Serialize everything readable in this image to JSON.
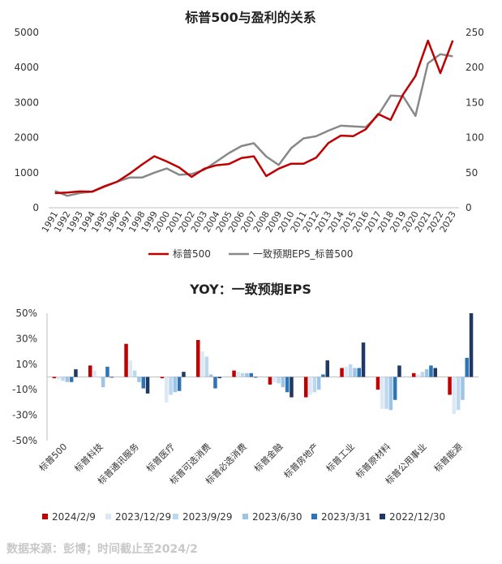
{
  "source_note": "数据来源：彭博；时间截止至2024/2",
  "chart_data": [
    {
      "type": "line",
      "title": "标普500与盈利的关系",
      "x": [
        "1991",
        "1992",
        "1993",
        "1994",
        "1995",
        "1996",
        "1997",
        "1998",
        "1999",
        "2000",
        "2001",
        "2002",
        "2003",
        "2004",
        "2005",
        "2006",
        "2007",
        "2008",
        "2009",
        "2010",
        "2011",
        "2012",
        "2013",
        "2014",
        "2015",
        "2016",
        "2017",
        "2018",
        "2019",
        "2020",
        "2021",
        "2022",
        "2023"
      ],
      "ylim_left": [
        0,
        5000
      ],
      "ylim_right": [
        0,
        250
      ],
      "yticks_left": [
        "0",
        "1000",
        "2000",
        "3000",
        "4000",
        "5000"
      ],
      "yticks_right": [
        "0",
        "50",
        "100",
        "150",
        "200",
        "250"
      ],
      "legend_position": "bottom",
      "series": [
        {
          "name": "标普500",
          "axis": "left",
          "color": "#c00000",
          "values": [
            417,
            436,
            466,
            459,
            616,
            741,
            970,
            1229,
            1469,
            1320,
            1148,
            880,
            1112,
            1212,
            1248,
            1418,
            1468,
            903,
            1115,
            1258,
            1258,
            1426,
            1848,
            2059,
            2044,
            2239,
            2674,
            2507,
            3231,
            3756,
            4766,
            3840,
            4770
          ]
        },
        {
          "name": "一致预期EPS_标普500",
          "axis": "right",
          "color": "#888888",
          "values": [
            24,
            17,
            21,
            23,
            30,
            37,
            43,
            43,
            50,
            56,
            47,
            48,
            54,
            66,
            78,
            88,
            92,
            73,
            61,
            85,
            99,
            102,
            110,
            117,
            116,
            115,
            132,
            160,
            159,
            131,
            206,
            219,
            216
          ]
        }
      ]
    },
    {
      "type": "bar",
      "title": "YOY：一致预期EPS",
      "categories": [
        "标普500",
        "标普科技",
        "标普通讯服务",
        "标普医疗",
        "标普可选消费",
        "标普必选消费",
        "标普金融",
        "标普房地产",
        "标普工业",
        "标普原材料",
        "标普公用事业",
        "标普能源"
      ],
      "ylim": [
        -50,
        50
      ],
      "yticks": [
        "50%",
        "30%",
        "10%",
        "-10%",
        "-30%",
        "-50%"
      ],
      "legend_position": "bottom",
      "series": [
        {
          "name": "2024/2/9",
          "color": "#c00000",
          "values": [
            -1,
            9,
            26,
            -1,
            29,
            5,
            -6,
            -16,
            7,
            -10,
            3,
            -14
          ]
        },
        {
          "name": "2023/12/29",
          "color": "#dbe9f7",
          "values": [
            -2,
            5,
            13,
            -20,
            20,
            4,
            -4,
            -14,
            8,
            -25,
            2,
            -29
          ]
        },
        {
          "name": "2023/9/29",
          "color": "#bdd7ee",
          "values": [
            -3,
            0,
            5,
            -14,
            16,
            3,
            -5,
            -12,
            10,
            -25,
            4,
            -26
          ]
        },
        {
          "name": "2023/6/30",
          "color": "#9dc3e6",
          "values": [
            -4,
            -8,
            -4,
            -12,
            2,
            3,
            -8,
            -10,
            7,
            -26,
            6,
            -18
          ]
        },
        {
          "name": "2023/3/31",
          "color": "#2e75b6",
          "values": [
            -4,
            8,
            -9,
            -11,
            -9,
            3,
            -12,
            2,
            7,
            -18,
            9,
            15
          ]
        },
        {
          "name": "2022/12/30",
          "color": "#1f3864",
          "values": [
            6,
            0,
            -13,
            4,
            -1,
            0,
            -16,
            13,
            27,
            9,
            7,
            50
          ]
        }
      ]
    }
  ]
}
